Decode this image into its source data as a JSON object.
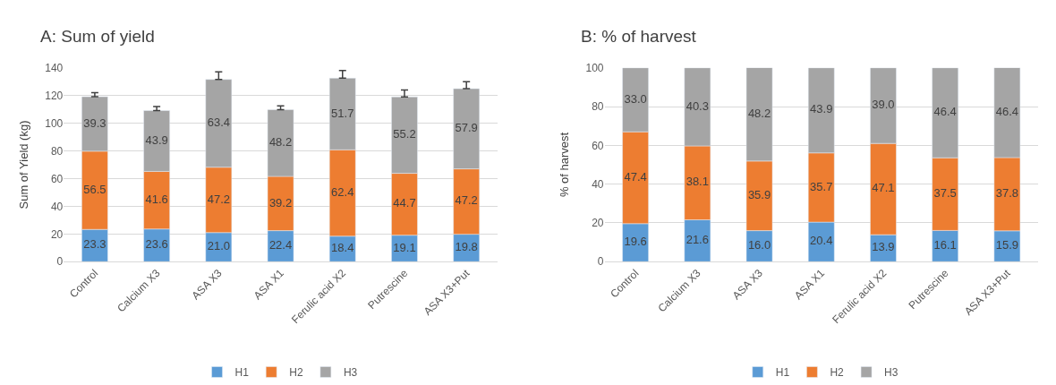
{
  "chart_data": [
    {
      "type": "bar",
      "title": "A: Sum of yield",
      "ylabel": "Sum of Yield (kg)",
      "stacked": true,
      "grid": "y",
      "legend": "bottom",
      "categories": [
        "Control",
        "Calcium X3",
        "ASA X3",
        "ASA X1",
        "Ferulic acid X2",
        "Putrescine",
        "ASA X3+Put"
      ],
      "ylim": [
        0,
        140
      ],
      "yticks": [
        0,
        20,
        40,
        60,
        80,
        100,
        120,
        140
      ],
      "series": [
        {
          "name": "H1",
          "color": "#5b9bd5",
          "values": [
            23.3,
            23.6,
            21.0,
            22.4,
            18.4,
            19.1,
            19.8
          ],
          "value_labels": [
            "23.3",
            "23.6",
            "21.0",
            "22.4",
            "18.4",
            "19.1",
            "19.8"
          ]
        },
        {
          "name": "H2",
          "color": "#ed7d31",
          "values": [
            56.5,
            41.6,
            47.2,
            39.2,
            62.4,
            44.7,
            47.2
          ],
          "value_labels": [
            "56.5",
            "41.6",
            "47.2",
            "39.2",
            "62.4",
            "44.7",
            "47.2"
          ]
        },
        {
          "name": "H3",
          "color": "#a5a5a5",
          "values": [
            39.3,
            43.9,
            63.4,
            48.2,
            51.7,
            55.2,
            57.9
          ],
          "value_labels": [
            "39.3",
            "43.9",
            "63.4",
            "48.2",
            "51.7",
            "55.2",
            "57.9"
          ],
          "errors": [
            [
              119.1,
              122
            ],
            [
              109.1,
              112
            ],
            [
              131.6,
              137
            ],
            [
              109.8,
              112.5
            ],
            [
              132.5,
              138
            ],
            [
              119.0,
              124
            ],
            [
              124.9,
              130
            ]
          ]
        }
      ]
    },
    {
      "type": "bar",
      "title": "B: % of harvest",
      "ylabel": "% of harvest",
      "stacked": true,
      "grid": "y",
      "legend": "bottom",
      "categories": [
        "Control",
        "Calcium X3",
        "ASA X3",
        "ASA X1",
        "Ferulic acid X2",
        "Putrescine",
        "ASA X3+Put"
      ],
      "ylim": [
        0,
        100
      ],
      "yticks": [
        0,
        20,
        40,
        60,
        80,
        100
      ],
      "series": [
        {
          "name": "H1",
          "color": "#5b9bd5",
          "values": [
            19.6,
            21.6,
            16.0,
            20.4,
            13.9,
            16.1,
            15.9
          ],
          "value_labels": [
            "19.6",
            "21.6",
            "16.0",
            "20.4",
            "13.9",
            "16.1",
            "15.9"
          ]
        },
        {
          "name": "H2",
          "color": "#ed7d31",
          "values": [
            47.4,
            38.1,
            35.9,
            35.7,
            47.1,
            37.5,
            37.8
          ],
          "value_labels": [
            "47.4",
            "38.1",
            "35.9",
            "35.7",
            "47.1",
            "37.5",
            "37.8"
          ]
        },
        {
          "name": "H3",
          "color": "#a5a5a5",
          "values": [
            33.0,
            40.3,
            48.2,
            43.9,
            39.0,
            46.4,
            46.4
          ],
          "value_labels": [
            "33.0",
            "40.3",
            "48.2",
            "43.9",
            "39.0",
            "46.4",
            "46.4"
          ]
        }
      ]
    }
  ]
}
